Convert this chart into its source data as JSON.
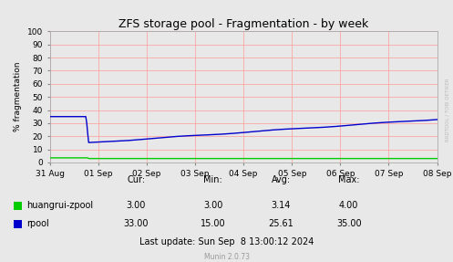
{
  "title": "ZFS storage pool - Fragmentation - by week",
  "ylabel": "% fragmentation",
  "background_color": "#e8e8e8",
  "plot_bg_color": "#e8e8e8",
  "grid_color": "#ff9999",
  "ylim": [
    0,
    100
  ],
  "yticks": [
    0,
    10,
    20,
    30,
    40,
    50,
    60,
    70,
    80,
    90,
    100
  ],
  "xtick_labels": [
    "31 Aug",
    "01 Sep",
    "02 Sep",
    "03 Sep",
    "04 Sep",
    "05 Sep",
    "06 Sep",
    "07 Sep",
    "08 Sep"
  ],
  "rpool_color": "#0000cc",
  "huangrui_color": "#00cc00",
  "legend_labels": [
    "huangrui-zpool",
    "rpool"
  ],
  "stats": {
    "huangrui": {
      "cur": "3.00",
      "min": "3.00",
      "avg": "3.14",
      "max": "4.00"
    },
    "rpool": {
      "cur": "33.00",
      "min": "15.00",
      "avg": "25.61",
      "max": "35.00"
    }
  },
  "last_update": "Last update: Sun Sep  8 13:00:12 2024",
  "munin_version": "Munin 2.0.73",
  "rrdtool_text": "RRDTOOL / TOBI OETIKER",
  "title_fontsize": 9,
  "axis_fontsize": 6.5,
  "stats_fontsize": 7,
  "munin_fontsize": 5.5
}
